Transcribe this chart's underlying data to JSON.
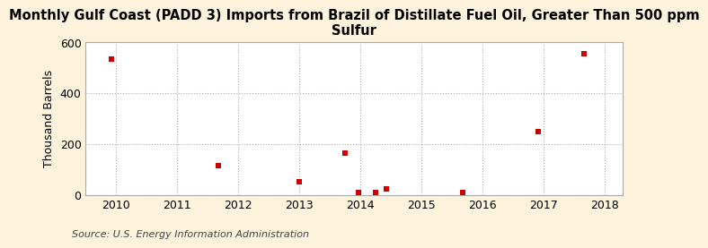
{
  "title": "Monthly Gulf Coast (PADD 3) Imports from Brazil of Distillate Fuel Oil, Greater Than 500 ppm\nSulfur",
  "ylabel": "Thousand Barrels",
  "source": "Source: U.S. Energy Information Administration",
  "background_color": "#fdf3dc",
  "plot_background_color": "#ffffff",
  "marker_color": "#cc0000",
  "marker": "s",
  "marker_size": 5,
  "xlim": [
    2009.5,
    2018.3
  ],
  "ylim": [
    0,
    600
  ],
  "yticks": [
    0,
    200,
    400,
    600
  ],
  "xticks": [
    2010,
    2011,
    2012,
    2013,
    2014,
    2015,
    2016,
    2017,
    2018
  ],
  "data_x": [
    2009.92,
    2011.67,
    2013.0,
    2013.75,
    2013.97,
    2014.25,
    2014.42,
    2015.67,
    2016.92,
    2017.67
  ],
  "data_y": [
    535,
    115,
    50,
    165,
    10,
    10,
    25,
    10,
    250,
    555
  ],
  "title_fontsize": 10.5,
  "label_fontsize": 9,
  "tick_fontsize": 9,
  "source_fontsize": 8
}
